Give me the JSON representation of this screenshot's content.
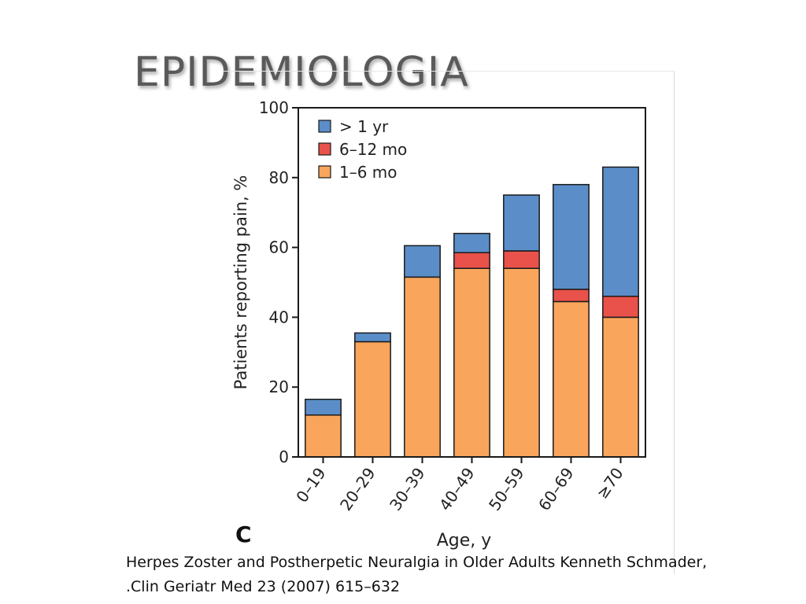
{
  "slide": {
    "title": "EPIDEMIOLOGIA",
    "citation_line1": "Herpes Zoster and Postherpetic Neuralgia in Older Adults Kenneth Schmader,",
    "citation_line2": ".Clin Geriatr Med 23 (2007) 615–632"
  },
  "chart_data": {
    "type": "bar",
    "stacked": true,
    "panel_label": "C",
    "categories": [
      "0–19",
      "20–29",
      "30–39",
      "40–49",
      "50–59",
      "60–69",
      "≥70"
    ],
    "series": [
      {
        "name": "1–6 mo",
        "color": "#f9a55c",
        "values": [
          12,
          33,
          51.5,
          54,
          54,
          44.5,
          40
        ]
      },
      {
        "name": "6–12 mo",
        "color": "#e8524a",
        "values": [
          0,
          0,
          0,
          4.5,
          5,
          3.5,
          6
        ]
      },
      {
        "name": "> 1 yr",
        "color": "#5b8ec8",
        "values": [
          4.5,
          2.5,
          9,
          5.5,
          16,
          30,
          37
        ]
      }
    ],
    "legend_order": [
      "> 1 yr",
      "6–12 mo",
      "1–6 mo"
    ],
    "legend_position": "top-left",
    "xlabel": "Age, y",
    "ylabel": "Patients reporting pain, %",
    "ylim": [
      0,
      100
    ],
    "yticks": [
      0,
      20,
      40,
      60,
      80,
      100
    ],
    "grid": false
  }
}
